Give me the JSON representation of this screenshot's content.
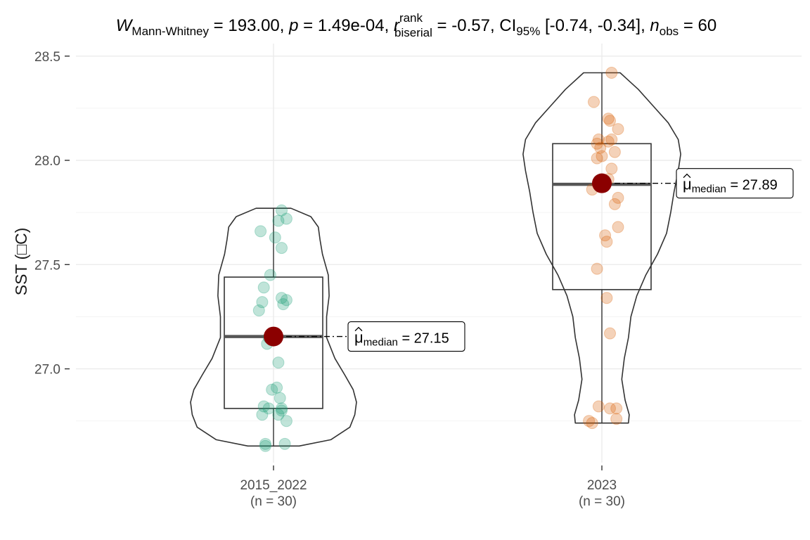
{
  "chart_data": {
    "type": "violin-box-scatter",
    "title": {
      "stat_symbol": "W",
      "stat_sub": "Mann-Whitney",
      "stat_value": "193.00",
      "p_symbol": "p",
      "p_value": "1.49e-04",
      "effsize_symbol": "r",
      "effsize_sup": "rank",
      "effsize_sub": "biserial",
      "effsize_value": "-0.57",
      "ci_symbol": "CI",
      "ci_sub": "95%",
      "ci_value": "[-0.74, -0.34]",
      "n_symbol": "n",
      "n_sub": "obs",
      "n_value": "60"
    },
    "ylabel": "SST (□C)",
    "ylim": [
      26.55,
      28.56
    ],
    "yticks": [
      27.0,
      27.5,
      28.0,
      28.5
    ],
    "yticklabels": [
      "27.0",
      "27.5",
      "28.0",
      "28.5"
    ],
    "grid": true,
    "groups": [
      {
        "label": "2015_2022",
        "n_label": "(n = 30)",
        "color": "#1b9e77",
        "box": {
          "q1": 26.81,
          "median": 27.155,
          "q3": 27.44,
          "min": 26.63,
          "max": 27.77
        },
        "median_marker": 27.155,
        "median_label": {
          "symbol": "μ",
          "sub": "median",
          "value": "27.15"
        },
        "violin": [
          [
            26.63,
            0.31
          ],
          [
            26.66,
            0.69
          ],
          [
            26.72,
            0.92
          ],
          [
            26.78,
            0.98
          ],
          [
            26.84,
            1.0
          ],
          [
            26.9,
            0.96
          ],
          [
            26.97,
            0.86
          ],
          [
            27.05,
            0.74
          ],
          [
            27.15,
            0.64
          ],
          [
            27.25,
            0.64
          ],
          [
            27.35,
            0.67
          ],
          [
            27.45,
            0.66
          ],
          [
            27.55,
            0.59
          ],
          [
            27.62,
            0.56
          ],
          [
            27.68,
            0.54
          ],
          [
            27.73,
            0.45
          ],
          [
            27.77,
            0.21
          ]
        ],
        "points": [
          [
            -0.05,
            26.63
          ],
          [
            -0.05,
            26.64
          ],
          [
            0.07,
            26.64
          ],
          [
            -0.07,
            26.78
          ],
          [
            -0.03,
            26.81
          ],
          [
            -0.06,
            26.82
          ],
          [
            0.05,
            26.81
          ],
          [
            0.05,
            26.8
          ],
          [
            0.03,
            26.78
          ],
          [
            0.08,
            26.75
          ],
          [
            0.04,
            26.86
          ],
          [
            -0.01,
            26.9
          ],
          [
            0.02,
            26.91
          ],
          [
            0.03,
            27.03
          ],
          [
            -0.03,
            27.15
          ],
          [
            -0.04,
            27.12
          ],
          [
            0.0,
            27.17
          ],
          [
            -0.09,
            27.28
          ],
          [
            -0.07,
            27.32
          ],
          [
            0.05,
            27.34
          ],
          [
            0.06,
            27.31
          ],
          [
            0.08,
            27.33
          ],
          [
            -0.06,
            27.39
          ],
          [
            -0.02,
            27.45
          ],
          [
            0.05,
            27.58
          ],
          [
            0.01,
            27.63
          ],
          [
            -0.08,
            27.66
          ],
          [
            0.03,
            27.71
          ],
          [
            0.08,
            27.72
          ],
          [
            0.05,
            27.76
          ]
        ]
      },
      {
        "label": "2023",
        "n_label": "(n = 30)",
        "color": "#d95f02",
        "box": {
          "q1": 27.38,
          "median": 27.885,
          "q3": 28.08,
          "min": 26.74,
          "max": 28.42
        },
        "median_marker": 27.89,
        "median_label": {
          "symbol": "μ",
          "sub": "median",
          "value": "27.89"
        },
        "violin": [
          [
            26.74,
            0.32
          ],
          [
            26.78,
            0.33
          ],
          [
            26.85,
            0.28
          ],
          [
            26.95,
            0.24
          ],
          [
            27.05,
            0.27
          ],
          [
            27.15,
            0.32
          ],
          [
            27.25,
            0.35
          ],
          [
            27.35,
            0.42
          ],
          [
            27.45,
            0.53
          ],
          [
            27.55,
            0.67
          ],
          [
            27.65,
            0.78
          ],
          [
            27.75,
            0.83
          ],
          [
            27.85,
            0.87
          ],
          [
            27.95,
            0.92
          ],
          [
            28.03,
            0.95
          ],
          [
            28.1,
            0.92
          ],
          [
            28.18,
            0.8
          ],
          [
            28.26,
            0.62
          ],
          [
            28.34,
            0.44
          ],
          [
            28.42,
            0.22
          ]
        ],
        "points": [
          [
            -0.08,
            26.75
          ],
          [
            -0.06,
            26.74
          ],
          [
            -0.02,
            26.82
          ],
          [
            0.05,
            26.81
          ],
          [
            0.09,
            26.81
          ],
          [
            0.09,
            26.76
          ],
          [
            0.05,
            27.17
          ],
          [
            0.03,
            27.34
          ],
          [
            -0.03,
            27.48
          ],
          [
            0.03,
            27.61
          ],
          [
            0.02,
            27.64
          ],
          [
            0.1,
            27.68
          ],
          [
            0.08,
            27.79
          ],
          [
            0.1,
            27.82
          ],
          [
            -0.06,
            27.86
          ],
          [
            0.04,
            27.91
          ],
          [
            0.06,
            27.96
          ],
          [
            -0.03,
            28.01
          ],
          [
            0.0,
            28.02
          ],
          [
            -0.01,
            28.06
          ],
          [
            0.08,
            28.04
          ],
          [
            0.04,
            28.09
          ],
          [
            -0.02,
            28.1
          ],
          [
            0.06,
            28.1
          ],
          [
            0.1,
            28.15
          ],
          [
            0.05,
            28.19
          ],
          [
            0.04,
            28.2
          ],
          [
            -0.05,
            28.28
          ],
          [
            0.06,
            28.42
          ],
          [
            -0.03,
            28.08
          ]
        ]
      }
    ]
  }
}
